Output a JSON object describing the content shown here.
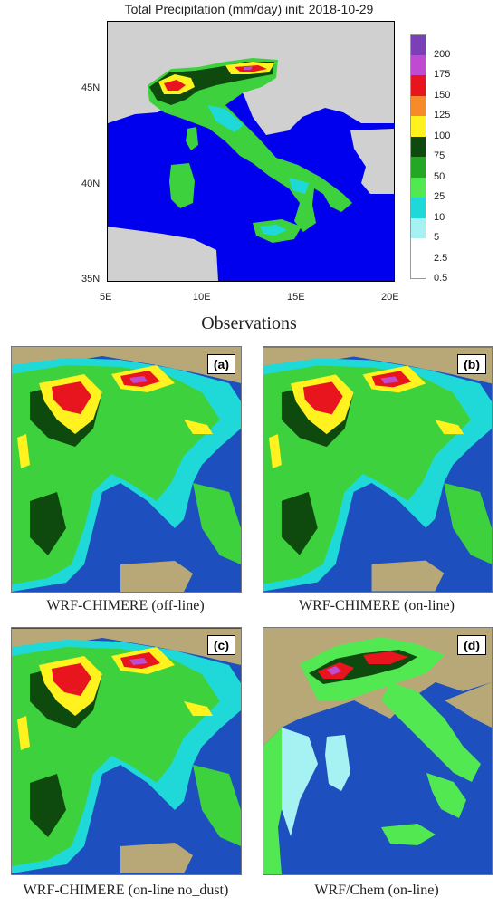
{
  "observations": {
    "title": "Total Precipitation (mm/day) init: 2018-10-29",
    "lat_ticks": [
      "45N",
      "40N",
      "35N"
    ],
    "lon_ticks": [
      "5E",
      "10E",
      "15E",
      "20E"
    ],
    "caption": "Observations"
  },
  "legend": {
    "levels": [
      {
        "label": "200",
        "color": "#7b3fb8"
      },
      {
        "label": "175",
        "color": "#c04ad0"
      },
      {
        "label": "150",
        "color": "#e8141e"
      },
      {
        "label": "125",
        "color": "#f78a2a"
      },
      {
        "label": "100",
        "color": "#fff21e"
      },
      {
        "label": "75",
        "color": "#0e4a0e"
      },
      {
        "label": "50",
        "color": "#24a824"
      },
      {
        "label": "25",
        "color": "#52e852"
      },
      {
        "label": "10",
        "color": "#1fd9d9"
      },
      {
        "label": "5",
        "color": "#a6f2f2"
      },
      {
        "label": "2.5",
        "color": "#ffffff"
      },
      {
        "label": "0.5",
        "color": "#ffffff"
      }
    ]
  },
  "panels": [
    {
      "tag": "(a)",
      "caption": "WRF-CHIMERE (off-line)"
    },
    {
      "tag": "(b)",
      "caption": "WRF-CHIMERE (on-line)"
    },
    {
      "tag": "(c)",
      "caption": "WRF-CHIMERE (on-line no_dust)"
    },
    {
      "tag": "(d)",
      "caption": "WRF/Chem (on-line)"
    }
  ],
  "colors": {
    "sea": "#0000ee",
    "land_gray": "#d0d0d0",
    "model_sea": "#1d4fbf",
    "cyan": "#1fd9d9",
    "green": "#3dd23d",
    "dark_green": "#0e4a0e",
    "yellow": "#fff21e",
    "red": "#e8141e",
    "purple": "#c04ad0",
    "terrain": "#b8a878"
  }
}
